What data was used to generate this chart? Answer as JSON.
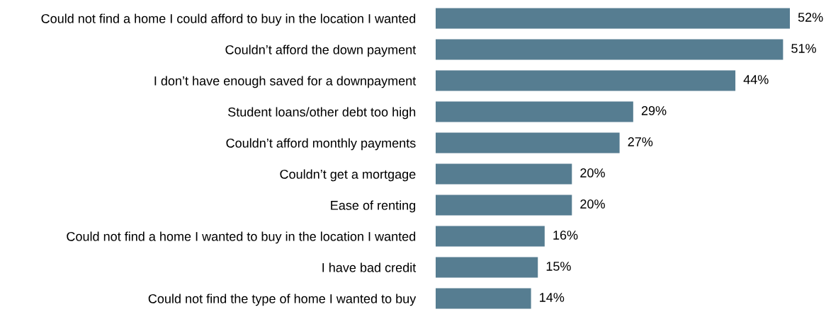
{
  "chart_data": {
    "type": "bar",
    "orientation": "horizontal",
    "categories": [
      "Could not find a home I could afford to buy in the location I wanted",
      "Couldn’t afford the down payment",
      "I don’t have enough saved for a downpayment",
      "Student loans/other debt too high",
      "Couldn’t afford monthly payments",
      "Couldn’t get a mortgage",
      "Ease of renting",
      "Could not find a home I wanted to buy in the location I wanted",
      "I have bad credit",
      "Could not find the type of home I wanted to buy"
    ],
    "values": [
      52,
      51,
      44,
      29,
      27,
      20,
      20,
      16,
      15,
      14
    ],
    "value_labels": [
      "52%",
      "51%",
      "44%",
      "29%",
      "27%",
      "20%",
      "20%",
      "16%",
      "15%",
      "14%"
    ],
    "color": "#567d91",
    "grid": false,
    "legend": false,
    "tick_labels": "y"
  }
}
